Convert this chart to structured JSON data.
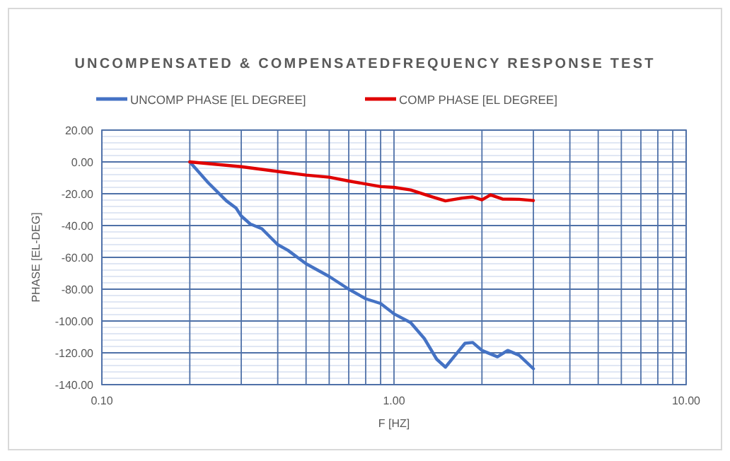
{
  "chart_data": {
    "type": "line",
    "title": "UNCOMPENSATED & COMPENSATEDFREQUENCY RESPONSE TEST",
    "xlabel": "F [HZ]",
    "ylabel": "PHASE [EL-DEG]",
    "log": "x",
    "grid": true,
    "legend": "top",
    "marker": "none",
    "line_style": "solid",
    "xlim": [
      0.1,
      10
    ],
    "ylim": [
      -140,
      20
    ],
    "xticks": [
      {
        "value": 0.1,
        "label": "0.10"
      },
      {
        "value": 0.2,
        "label": null
      },
      {
        "value": 0.3,
        "label": null
      },
      {
        "value": 0.4,
        "label": null
      },
      {
        "value": 0.5,
        "label": null
      },
      {
        "value": 0.6,
        "label": null
      },
      {
        "value": 0.7,
        "label": null
      },
      {
        "value": 0.8,
        "label": null
      },
      {
        "value": 0.9,
        "label": null
      },
      {
        "value": 1,
        "label": "1.00"
      },
      {
        "value": 2,
        "label": null
      },
      {
        "value": 3,
        "label": null
      },
      {
        "value": 4,
        "label": null
      },
      {
        "value": 5,
        "label": null
      },
      {
        "value": 6,
        "label": null
      },
      {
        "value": 7,
        "label": null
      },
      {
        "value": 8,
        "label": null
      },
      {
        "value": 9,
        "label": null
      },
      {
        "value": 10,
        "label": "10.00"
      }
    ],
    "yticks": [
      {
        "value": 20,
        "label": "20.00"
      },
      {
        "value": 0,
        "label": "0.00"
      },
      {
        "value": -20,
        "label": "-20.00"
      },
      {
        "value": -40,
        "label": "-40.00"
      },
      {
        "value": -60,
        "label": "-60.00"
      },
      {
        "value": -80,
        "label": "-80.00"
      },
      {
        "value": -100,
        "label": "-100.00"
      },
      {
        "value": -120,
        "label": "-120.00"
      },
      {
        "value": -140,
        "label": "-140.00"
      }
    ],
    "series": [
      {
        "name": "UNCOMP PHASE [EL DEGREE]",
        "color": "#4472c4",
        "x": [
          0.2,
          0.231,
          0.267,
          0.288,
          0.3,
          0.322,
          0.353,
          0.4,
          0.433,
          0.5,
          0.6,
          0.7,
          0.8,
          0.9,
          1.0,
          1.14,
          1.27,
          1.4,
          1.5,
          1.75,
          1.86,
          2.0,
          2.26,
          2.45,
          2.68,
          3.0
        ],
        "values": [
          0,
          -13,
          -24.5,
          -29,
          -34,
          -39,
          -42,
          -52,
          -55.5,
          -64,
          -72,
          -80,
          -86,
          -89,
          -95.5,
          -101,
          -111,
          -124,
          -129,
          -114,
          -113.5,
          -118.5,
          -122.5,
          -118.5,
          -121.5,
          -130
        ]
      },
      {
        "name": "COMP PHASE [EL DEGREE]",
        "color": "#e00000",
        "x": [
          0.2,
          0.3,
          0.4,
          0.5,
          0.6,
          0.7,
          0.9,
          1.0,
          1.14,
          1.32,
          1.5,
          1.71,
          1.86,
          2.0,
          2.14,
          2.35,
          2.68,
          3.0
        ],
        "values": [
          0,
          -3,
          -6,
          -8.3,
          -9.6,
          -12,
          -15.5,
          -16,
          -17.6,
          -21.4,
          -24.5,
          -22.7,
          -22,
          -23.8,
          -20.7,
          -23.3,
          -23.5,
          -24.3
        ]
      }
    ]
  }
}
